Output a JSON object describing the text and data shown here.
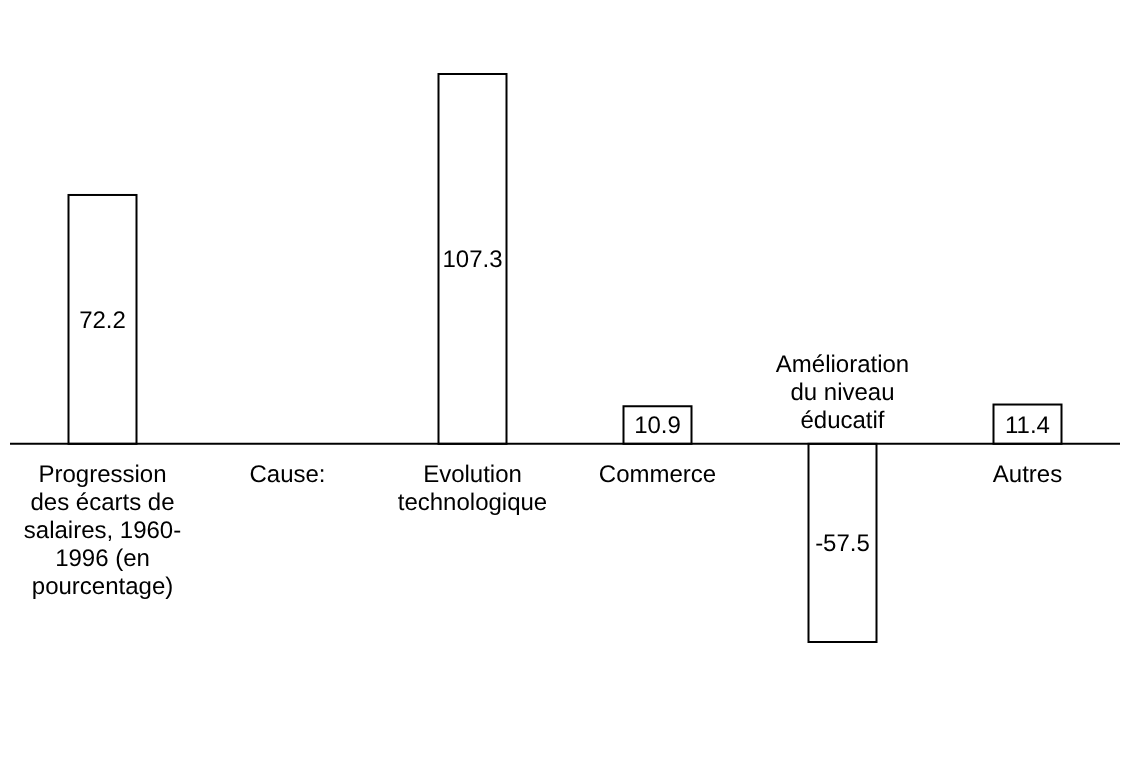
{
  "chart_data": {
    "type": "bar",
    "categories": [
      "Progression des écarts de salaires, 1960-1996 (en pourcentage)",
      null,
      "Evolution technologique",
      "Commerce",
      "Amélioration du niveau éducatif",
      "Autres"
    ],
    "values": [
      72.2,
      null,
      107.3,
      10.9,
      -57.5,
      11.4
    ],
    "color": "#ffffff",
    "data_labels": true,
    "annotations": [
      "Cause:"
    ]
  }
}
